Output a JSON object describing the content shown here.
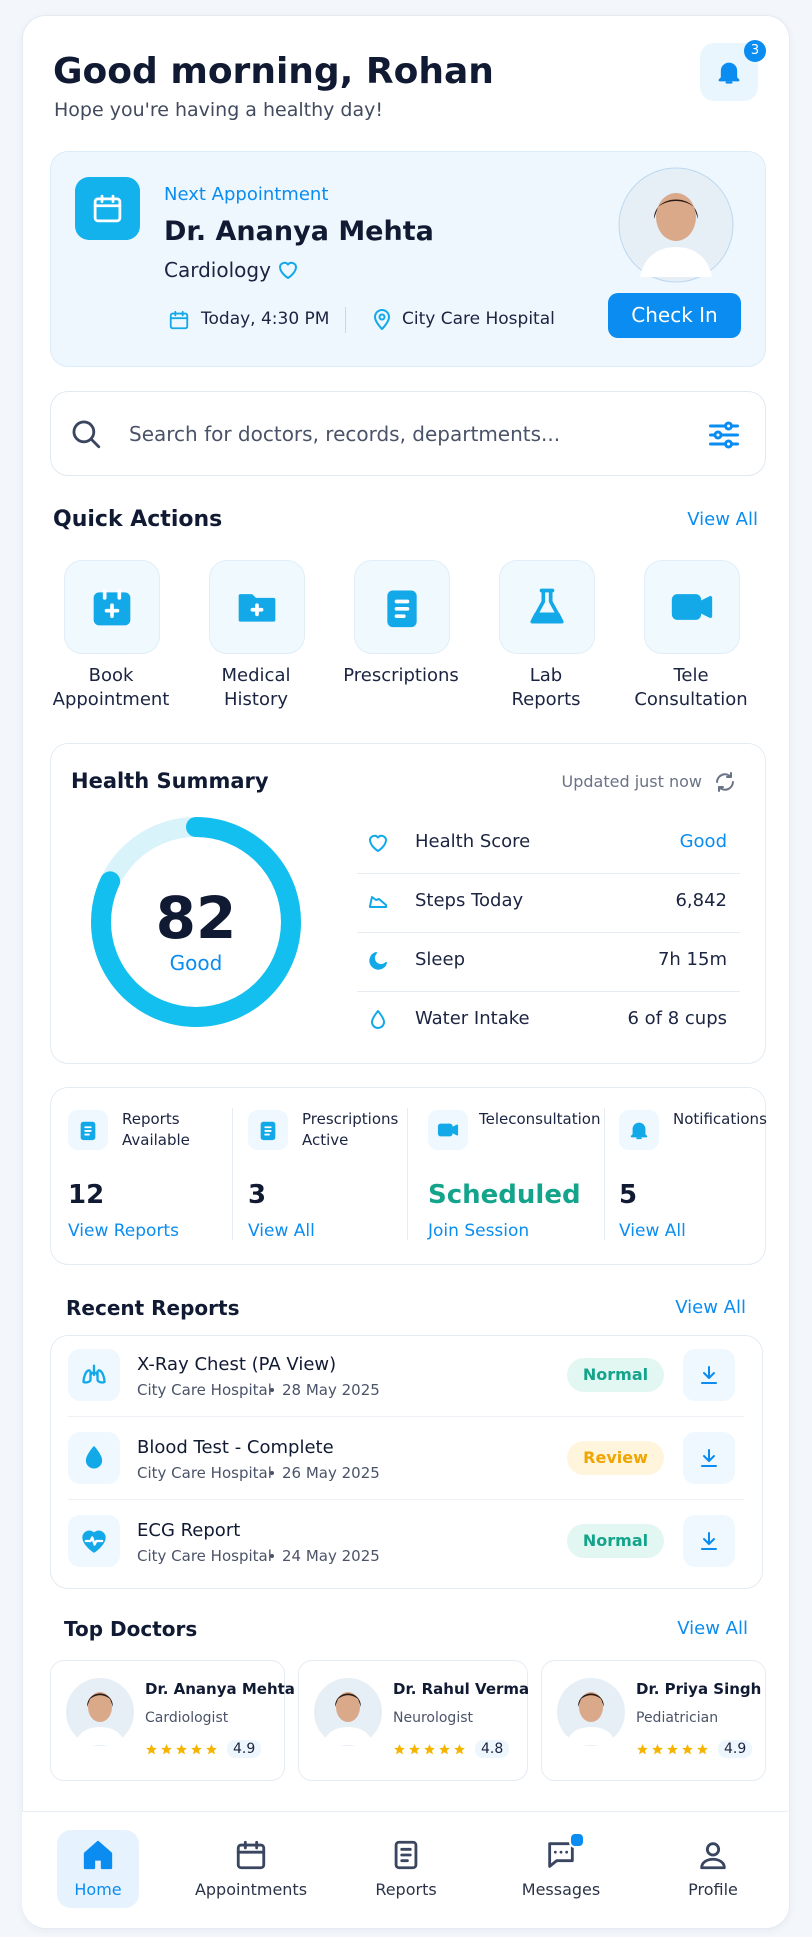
{
  "header": {
    "greeting": "Good morning, Rohan",
    "subtitle": "Hope you're having a healthy day!",
    "notification_count": 3
  },
  "next_appointment": {
    "label": "Next Appointment",
    "doctor": "Dr. Ananya Mehta",
    "specialty": "Cardiology",
    "date_time": "Today, 4:30 PM",
    "location": "City Care Hospital",
    "button": "Check In"
  },
  "search": {
    "placeholder": "Search for doctors, records, departments..."
  },
  "quick_actions": {
    "title": "Quick Actions",
    "view_all": "View All",
    "items": [
      [
        "Book",
        "Appointment"
      ],
      [
        "Medical",
        "History"
      ],
      [
        "Prescriptions"
      ],
      [
        "Lab",
        "Reports"
      ],
      [
        "Tele",
        "Consultation"
      ]
    ]
  },
  "health_summary": {
    "title": "Health Summary",
    "updated": "Updated just now",
    "score": 82,
    "score_label": "Good",
    "metrics": [
      {
        "label": "Health Score",
        "value": "Good",
        "color": "#0a8cf0"
      },
      {
        "label": "Steps Today",
        "value": "6,842",
        "color": "#1b2440"
      },
      {
        "label": "Sleep",
        "value": "7h 15m",
        "color": "#1b2440"
      },
      {
        "label": "Water Intake",
        "value": "6 of 8 cups",
        "color": "#1b2440"
      }
    ]
  },
  "stats": [
    {
      "label": [
        "Reports",
        "Available"
      ],
      "value": 12,
      "link": "View Reports",
      "color": "#111a33"
    },
    {
      "label": [
        "Prescriptions",
        "Active"
      ],
      "value": 3,
      "link": "View All",
      "color": "#111a33"
    },
    {
      "label": [
        "Teleconsultation"
      ],
      "value": "Scheduled",
      "link": "Join Session",
      "color": "#14a38b"
    },
    {
      "label": [
        "Notifications"
      ],
      "value": 5,
      "link": "View All",
      "color": "#111a33"
    }
  ],
  "recent_reports": {
    "title": "Recent Reports",
    "view_all": "View All",
    "items": [
      {
        "title": "X-Ray Chest (PA View)",
        "hospital": "City Care Hospital",
        "date": "28 May 2025",
        "status": "Normal",
        "status_color": "#14a38b",
        "status_bg": "#e2f7f2"
      },
      {
        "title": "Blood Test - Complete",
        "hospital": "City Care Hospital",
        "date": "26 May 2025",
        "status": "Review",
        "status_color": "#f0a500",
        "status_bg": "#fff5dc"
      },
      {
        "title": "ECG Report",
        "hospital": "City Care Hospital",
        "date": "24 May 2025",
        "status": "Normal",
        "status_color": "#14a38b",
        "status_bg": "#e2f7f2"
      }
    ]
  },
  "top_doctors": {
    "title": "Top Doctors",
    "view_all": "View All",
    "items": [
      {
        "name": "Dr. Ananya Mehta",
        "specialty": "Cardiologist",
        "rating": 4.9
      },
      {
        "name": "Dr. Rahul Verma",
        "specialty": "Neurologist",
        "rating": 4.8
      },
      {
        "name": "Dr. Priya Singh",
        "specialty": "Pediatrician",
        "rating": 4.9
      }
    ]
  },
  "nav": [
    "Home",
    "Appointments",
    "Reports",
    "Messages",
    "Profile"
  ]
}
